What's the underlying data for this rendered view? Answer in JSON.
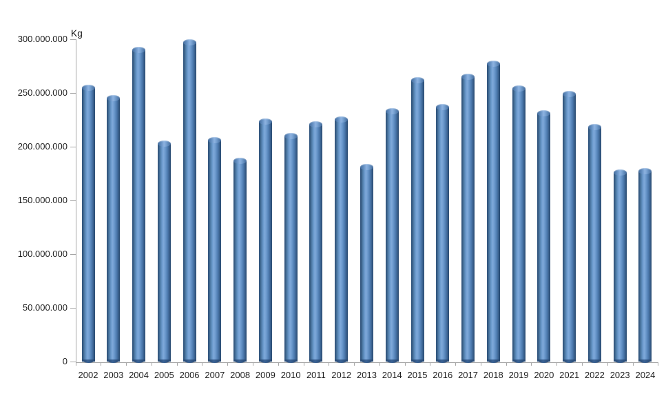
{
  "chart_data": {
    "type": "bar",
    "title": "",
    "unit_label": "Kg",
    "xlabel": "",
    "ylabel": "Kg",
    "categories": [
      "2002",
      "2003",
      "2004",
      "2005",
      "2006",
      "2007",
      "2008",
      "2009",
      "2010",
      "2011",
      "2012",
      "2013",
      "2014",
      "2015",
      "2016",
      "2017",
      "2018",
      "2019",
      "2020",
      "2021",
      "2022",
      "2023",
      "2024"
    ],
    "values": [
      258000000,
      248000000,
      293000000,
      206000000,
      300000000,
      209000000,
      190000000,
      226000000,
      213000000,
      224000000,
      228000000,
      184000000,
      236000000,
      265000000,
      240000000,
      268000000,
      280000000,
      257000000,
      234000000,
      252000000,
      221000000,
      179000000,
      180000000
    ],
    "ylim": [
      0,
      300000000
    ],
    "y_ticks": [
      0,
      50000000,
      100000000,
      150000000,
      200000000,
      250000000,
      300000000
    ],
    "y_tick_labels": [
      "0",
      "50.000.000",
      "100.000.000",
      "150.000.000",
      "200.000.000",
      "250.000.000",
      "300.000.000"
    ],
    "grid": "off",
    "legend": "none",
    "bar_style": "3d-cylinder",
    "bar_color": "#4f81bd",
    "bar_edge_color": "#2a4a70",
    "axis_color": "#a6a6a6",
    "text_color": "#1f1f1f",
    "background_color": "#ffffff"
  }
}
